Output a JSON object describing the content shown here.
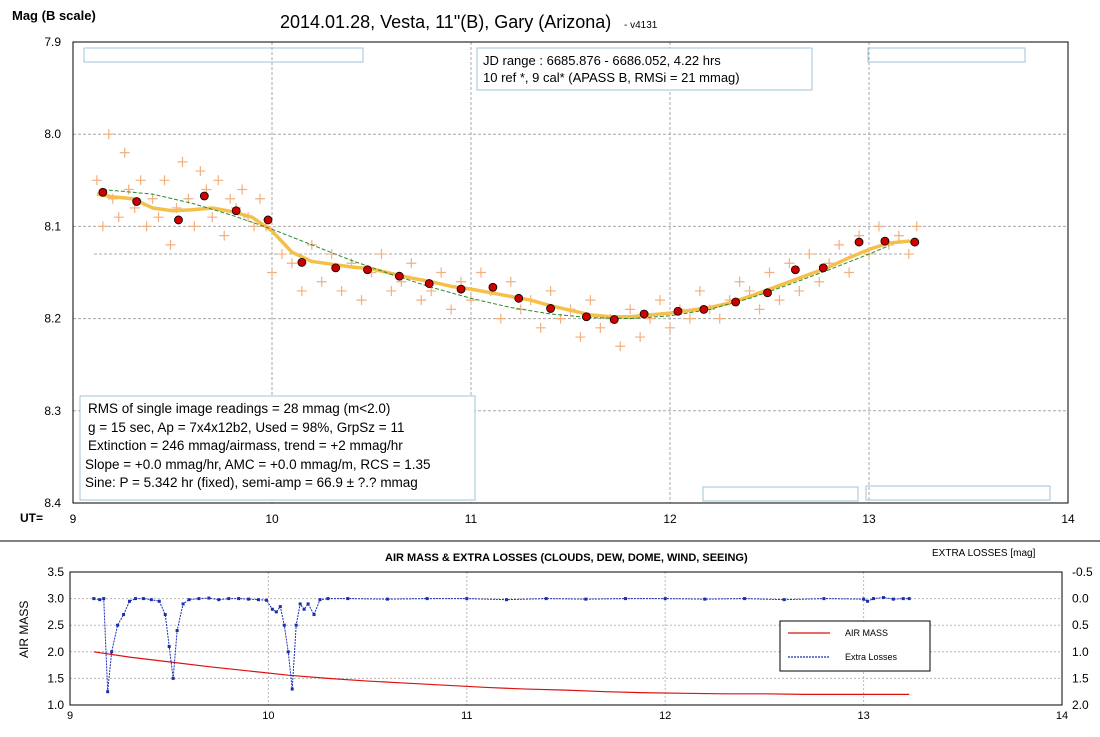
{
  "chart_data": [
    {
      "type": "scatter",
      "title": "2014.01.28, Vesta, 11\"(B), Gary (Arizona)",
      "title_suffix": "- v4131",
      "ylabel": "Mag (B scale)",
      "xlabel": "UT=",
      "xlim": [
        9,
        14
      ],
      "ylim": [
        8.4,
        7.9
      ],
      "y_inverted": true,
      "grid": true,
      "x_ticks": [
        9,
        10,
        11,
        12,
        13,
        14
      ],
      "y_ticks": [
        7.9,
        8.0,
        8.1,
        8.2,
        8.3,
        8.4
      ],
      "y_tick_labels": [
        "7.9",
        "8.0",
        "8.1",
        "8.2",
        "8.3",
        "8.4"
      ],
      "reference_mag": 8.13,
      "info_box_top": [
        "JD range : 6685.876 - 6686.052, 4.22 hrs",
        "10  ref *, 9 cal* (APASS B, RMSi = 21 mmag)"
      ],
      "info_box_bottom": [
        "RMS of single image readings = 28 mmag (m<2.0)",
        "g = 15 sec, Ap = 7x4x12b2,  Used = 98%, GrpSz = 11",
        "Extinction = 246 mmag/airmass, trend = +2 mmag/hr",
        "Slope = +0.0 mmag/hr, AMC = +0.0 mmag/m, RCS = 1.35",
        "Sine: P = 5.342 hr (fixed), semi-amp = 66.9 ± ?.? mmag"
      ],
      "colors": {
        "single": "#f0b080",
        "group": "#cc0000",
        "smooth": "#f5c04a",
        "trend": "#2f8a2f",
        "grid": "#a8a8a8",
        "boxborder": "#9fc3d9"
      },
      "series": [
        {
          "kind": "single_readings",
          "x": [
            9.12,
            9.15,
            9.18,
            9.2,
            9.23,
            9.26,
            9.28,
            9.31,
            9.34,
            9.37,
            9.4,
            9.43,
            9.46,
            9.49,
            9.52,
            9.55,
            9.58,
            9.61,
            9.64,
            9.67,
            9.7,
            9.73,
            9.76,
            9.79,
            9.82,
            9.85,
            9.88,
            9.91,
            9.94,
            9.97,
            10.0,
            10.05,
            10.1,
            10.15,
            10.2,
            10.25,
            10.3,
            10.35,
            10.4,
            10.45,
            10.5,
            10.55,
            10.6,
            10.65,
            10.7,
            10.75,
            10.8,
            10.85,
            10.9,
            10.95,
            11.0,
            11.05,
            11.1,
            11.15,
            11.2,
            11.25,
            11.3,
            11.35,
            11.4,
            11.45,
            11.5,
            11.55,
            11.6,
            11.65,
            11.7,
            11.75,
            11.8,
            11.85,
            11.9,
            11.95,
            12.0,
            12.05,
            12.1,
            12.15,
            12.2,
            12.25,
            12.3,
            12.35,
            12.4,
            12.45,
            12.5,
            12.55,
            12.6,
            12.65,
            12.7,
            12.75,
            12.8,
            12.85,
            12.9,
            12.95,
            13.0,
            13.05,
            13.1,
            13.15,
            13.2,
            13.24
          ],
          "y": [
            8.05,
            8.1,
            8.0,
            8.07,
            8.09,
            8.02,
            8.06,
            8.08,
            8.05,
            8.1,
            8.07,
            8.09,
            8.05,
            8.12,
            8.08,
            8.03,
            8.07,
            8.1,
            8.04,
            8.06,
            8.09,
            8.05,
            8.11,
            8.07,
            8.08,
            8.06,
            8.09,
            8.1,
            8.07,
            8.1,
            8.15,
            8.13,
            8.14,
            8.17,
            8.12,
            8.16,
            8.13,
            8.17,
            8.14,
            8.18,
            8.15,
            8.13,
            8.17,
            8.16,
            8.14,
            8.18,
            8.17,
            8.15,
            8.19,
            8.16,
            8.18,
            8.15,
            8.17,
            8.2,
            8.16,
            8.19,
            8.18,
            8.21,
            8.17,
            8.2,
            8.19,
            8.22,
            8.18,
            8.21,
            8.2,
            8.23,
            8.19,
            8.22,
            8.2,
            8.18,
            8.21,
            8.19,
            8.2,
            8.17,
            8.19,
            8.2,
            8.18,
            8.16,
            8.17,
            8.19,
            8.15,
            8.18,
            8.14,
            8.17,
            8.13,
            8.16,
            8.14,
            8.12,
            8.15,
            8.11,
            8.13,
            8.1,
            8.12,
            8.11,
            8.13,
            8.1
          ]
        },
        {
          "kind": "group_means",
          "x": [
            9.15,
            9.32,
            9.53,
            9.66,
            9.82,
            9.98,
            10.15,
            10.32,
            10.48,
            10.64,
            10.79,
            10.95,
            11.11,
            11.24,
            11.4,
            11.58,
            11.72,
            11.87,
            12.04,
            12.17,
            12.33,
            12.49,
            12.63,
            12.77,
            12.95,
            13.08,
            13.23
          ],
          "y": [
            8.063,
            8.073,
            8.093,
            8.067,
            8.083,
            8.093,
            8.139,
            8.145,
            8.147,
            8.154,
            8.162,
            8.168,
            8.166,
            8.178,
            8.189,
            8.198,
            8.201,
            8.195,
            8.192,
            8.19,
            8.182,
            8.172,
            8.147,
            8.145,
            8.117,
            8.116,
            8.117
          ]
        },
        {
          "kind": "running_average",
          "x": [
            9.12,
            9.2,
            9.3,
            9.4,
            9.5,
            9.6,
            9.7,
            9.8,
            9.9,
            10.0,
            10.1,
            10.2,
            10.3,
            10.4,
            10.5,
            10.6,
            10.7,
            10.8,
            10.9,
            11.0,
            11.1,
            11.2,
            11.3,
            11.4,
            11.5,
            11.6,
            11.7,
            11.8,
            11.9,
            12.0,
            12.1,
            12.2,
            12.3,
            12.4,
            12.5,
            12.6,
            12.7,
            12.8,
            12.9,
            13.0,
            13.1,
            13.2,
            13.24
          ],
          "y": [
            8.065,
            8.068,
            8.07,
            8.08,
            8.083,
            8.082,
            8.08,
            8.084,
            8.09,
            8.105,
            8.128,
            8.138,
            8.141,
            8.144,
            8.146,
            8.151,
            8.156,
            8.16,
            8.165,
            8.168,
            8.172,
            8.176,
            8.18,
            8.186,
            8.191,
            8.196,
            8.198,
            8.198,
            8.196,
            8.194,
            8.191,
            8.188,
            8.183,
            8.176,
            8.168,
            8.16,
            8.152,
            8.144,
            8.134,
            8.125,
            8.118,
            8.116,
            8.118
          ]
        },
        {
          "kind": "sine_fit",
          "x": [
            9.15,
            9.4,
            9.6,
            9.8,
            10.0,
            10.2,
            10.4,
            10.6,
            10.8,
            11.0,
            11.2,
            11.4,
            11.6,
            11.8,
            12.0,
            12.2,
            12.4,
            12.6,
            12.8,
            13.0,
            13.1
          ],
          "y": [
            8.06,
            8.065,
            8.075,
            8.088,
            8.103,
            8.12,
            8.137,
            8.152,
            8.166,
            8.178,
            8.188,
            8.195,
            8.199,
            8.2,
            8.197,
            8.19,
            8.178,
            8.163,
            8.147,
            8.13,
            8.121
          ]
        }
      ]
    },
    {
      "type": "line",
      "title": "AIR MASS & EXTRA LOSSES (CLOUDS, DEW, DOME, WIND, SEEING)",
      "ylabel": "AIR MASS",
      "y2label": "EXTRA LOSSES [mag]",
      "xlim": [
        9,
        14
      ],
      "ylim": [
        1.0,
        3.5
      ],
      "y2lim": [
        2.0,
        -0.5
      ],
      "x_ticks": [
        9,
        10,
        11,
        12,
        13,
        14
      ],
      "y_ticks": [
        1.0,
        1.5,
        2.0,
        2.5,
        3.0,
        3.5
      ],
      "y_tick_labels": [
        "1.0",
        "1.5",
        "2.0",
        "2.5",
        "3.0",
        "3.5"
      ],
      "y2_ticks": [
        -0.5,
        0.0,
        0.5,
        1.0,
        1.5,
        2.0
      ],
      "y2_tick_labels": [
        "-0.5",
        "0.0",
        "0.5",
        "1.0",
        "1.5",
        "2.0"
      ],
      "legend_position": "center-right",
      "colors": {
        "airmass": "#dd1111",
        "losses": "#1a2fb0"
      },
      "series": [
        {
          "name": "AIR MASS",
          "axis": "left",
          "x": [
            9.12,
            9.3,
            9.5,
            9.7,
            9.9,
            10.1,
            10.3,
            10.5,
            10.7,
            10.9,
            11.1,
            11.3,
            11.5,
            11.7,
            11.9,
            12.1,
            12.3,
            12.5,
            12.7,
            12.9,
            13.1,
            13.23
          ],
          "y": [
            2.0,
            1.9,
            1.81,
            1.72,
            1.64,
            1.56,
            1.5,
            1.45,
            1.41,
            1.37,
            1.33,
            1.3,
            1.28,
            1.25,
            1.23,
            1.22,
            1.21,
            1.21,
            1.2,
            1.2,
            1.2,
            1.2
          ]
        },
        {
          "name": "Extra Losses",
          "axis": "right",
          "x": [
            9.12,
            9.15,
            9.17,
            9.19,
            9.21,
            9.24,
            9.27,
            9.3,
            9.33,
            9.37,
            9.41,
            9.45,
            9.48,
            9.5,
            9.52,
            9.54,
            9.57,
            9.6,
            9.65,
            9.7,
            9.75,
            9.8,
            9.85,
            9.9,
            9.95,
            9.99,
            10.02,
            10.04,
            10.06,
            10.08,
            10.1,
            10.12,
            10.14,
            10.16,
            10.18,
            10.2,
            10.23,
            10.26,
            10.3,
            10.4,
            10.6,
            10.8,
            11.0,
            11.2,
            11.4,
            11.6,
            11.8,
            12.0,
            12.2,
            12.4,
            12.6,
            12.8,
            13.0,
            13.02,
            13.05,
            13.1,
            13.15,
            13.2,
            13.23
          ],
          "y": [
            0.0,
            0.02,
            0.0,
            1.75,
            1.0,
            0.5,
            0.3,
            0.05,
            0.0,
            0.0,
            0.02,
            0.05,
            0.3,
            0.9,
            1.5,
            0.6,
            0.1,
            0.02,
            0.0,
            -0.01,
            0.02,
            0.0,
            0.0,
            0.01,
            0.02,
            0.03,
            0.2,
            0.25,
            0.15,
            0.5,
            1.0,
            1.7,
            0.5,
            0.1,
            0.2,
            0.1,
            0.3,
            0.02,
            0.0,
            0.0,
            0.01,
            0.0,
            0.0,
            0.02,
            0.0,
            0.01,
            0.0,
            0.0,
            0.01,
            0.0,
            0.02,
            0.0,
            0.01,
            0.05,
            0.0,
            -0.02,
            0.01,
            0.0,
            0.0
          ]
        }
      ]
    }
  ]
}
